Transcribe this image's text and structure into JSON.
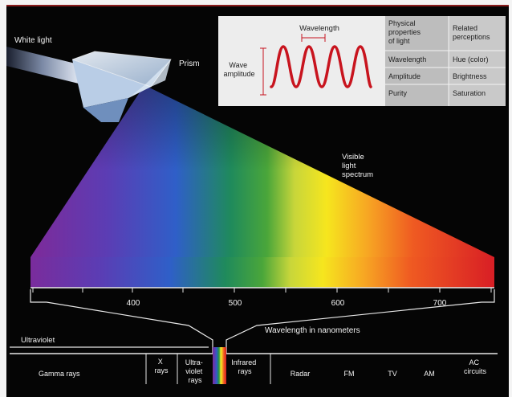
{
  "header": {
    "white_light": "White light",
    "prism": "Prism"
  },
  "wave_panel": {
    "wavelength": "Wavelength",
    "amplitude_line1": "Wave",
    "amplitude_line2": "amplitude"
  },
  "properties_table": {
    "header_left_lines": [
      "Physical",
      "properties",
      "of light"
    ],
    "header_right_lines": [
      "Related",
      "perceptions"
    ],
    "rows": [
      {
        "property": "Wavelength",
        "perception": "Hue (color)"
      },
      {
        "property": "Amplitude",
        "perception": "Brightness"
      },
      {
        "property": "Purity",
        "perception": "Saturation"
      }
    ]
  },
  "visible_label_lines": [
    "Visible",
    "light",
    "spectrum"
  ],
  "nm_ticks": [
    "400",
    "500",
    "600",
    "700"
  ],
  "bottom": {
    "ultraviolet": "Ultraviolet",
    "wavelength_caption": "Wavelength in nanometers"
  },
  "em_spectrum": {
    "gamma": "Gamma rays",
    "xrays_lines": [
      "X",
      "rays"
    ],
    "uv_lines": [
      "Ultra-",
      "violet",
      "rays"
    ],
    "infrared_lines": [
      "Infrared",
      "rays"
    ],
    "radar": "Radar",
    "fm": "FM",
    "tv": "TV",
    "am": "AM",
    "ac_lines": [
      "AC",
      "circuits"
    ]
  },
  "colors": {
    "background": "#050505",
    "wave": "#c8141e",
    "frame_border": "#8a1d1d"
  }
}
